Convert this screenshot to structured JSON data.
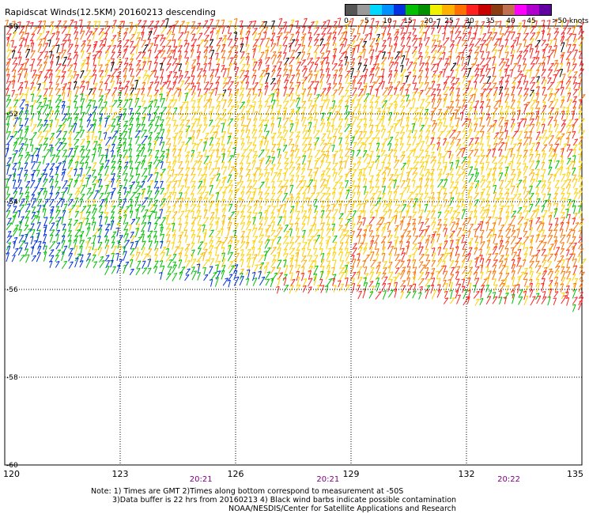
{
  "title": "Rapidscat Winds(12.5KM) 20160213 descending",
  "legend": {
    "labels": [
      "0",
      "5",
      "10",
      "15",
      "20",
      "25",
      "30",
      "35",
      "40",
      "45",
      ">50 knots"
    ],
    "colors": [
      "#555555",
      "#9a9a9a",
      "#00d8ff",
      "#0090ff",
      "#0030e0",
      "#00c000",
      "#009000",
      "#f0f000",
      "#ffb000",
      "#ff7000",
      "#ff2020",
      "#c80000",
      "#8a3c10",
      "#c07050",
      "#ff00ff",
      "#b000d0",
      "#6000a0"
    ]
  },
  "chart_data": {
    "type": "map",
    "x_axis": {
      "ticks": [
        "120",
        "123",
        "126",
        "129",
        "132",
        "135"
      ],
      "values": [
        120,
        123,
        126,
        129,
        132,
        135
      ]
    },
    "y_axis": {
      "ticks": [
        "-50",
        "-52",
        "-54",
        "-56",
        "-58",
        "-60"
      ],
      "values": [
        -50,
        -52,
        -54,
        -56,
        -58,
        -60
      ]
    },
    "time_labels": [
      {
        "text": "20:21",
        "lon": 125.1
      },
      {
        "text": "20:21",
        "lon": 128.4
      },
      {
        "text": "20:22",
        "lon": 133.1
      }
    ],
    "swath_south_edge": [
      [
        120,
        -55.4
      ],
      [
        123,
        -55.7
      ],
      [
        126,
        -56.0
      ],
      [
        129,
        -56.2
      ],
      [
        132,
        -56.4
      ],
      [
        135,
        -56.5
      ]
    ],
    "wind_zones": [
      {
        "region": "north (-50 to -51.5)",
        "speed_knots": "30-35",
        "color": "#ff2020"
      },
      {
        "region": "central",
        "speed_knots": "20-25",
        "color": "#ffd000"
      },
      {
        "region": "western (120-124)",
        "speed_knots": "10-20",
        "color": "#00c000"
      },
      {
        "region": "far south-west edge",
        "speed_knots": "10-15",
        "color": "#0030e0"
      }
    ],
    "grid": true
  },
  "notes": [
    "Note: 1) Times are GMT 2)Times along bottom correspond to measurement at -50S",
    "3)Data buffer is 22 hrs from 20160213 4) Black wind barbs indicate possible contamination",
    "NOAA/NESDIS/Center for Satellite Applications and Research"
  ]
}
